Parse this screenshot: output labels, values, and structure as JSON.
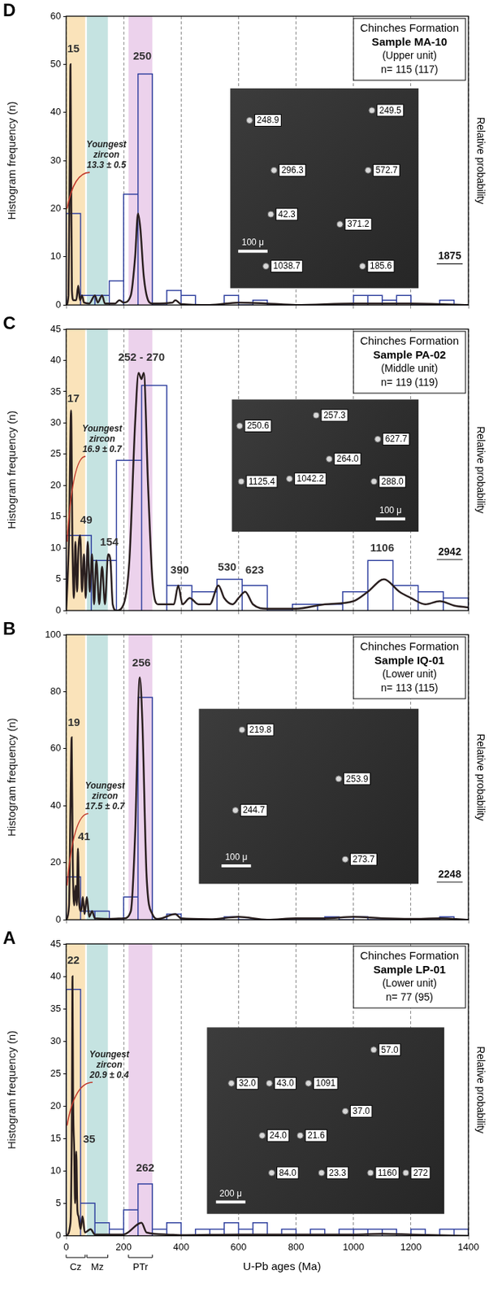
{
  "chart_data": [
    {
      "type": "histogram",
      "panel_label": "D",
      "title": "Chinches Formation",
      "subtitle": [
        "Sample MA-10",
        "(Upper unit)",
        "n= 115 (117)"
      ],
      "y_label": "Histogram frequency (n)",
      "y2_label": "Relative probability",
      "bins": [
        0,
        50,
        100,
        150,
        200,
        250,
        300,
        350,
        400,
        450,
        500,
        550,
        600,
        650,
        700,
        750,
        800,
        850,
        900,
        950,
        1000,
        1050,
        1100,
        1150,
        1200,
        1250,
        1300,
        1350,
        1400
      ],
      "values": [
        19,
        2,
        2,
        5,
        23,
        48,
        0,
        3,
        2,
        0,
        0,
        2,
        0,
        1,
        0,
        0,
        0,
        0,
        0,
        0,
        2,
        2,
        1,
        2,
        0,
        0,
        1,
        0
      ],
      "color": "#2e3f9e",
      "curve": {
        "x": [
          0,
          8,
          13,
          15,
          17,
          20,
          25,
          35,
          42,
          48,
          55,
          62,
          80,
          100,
          110,
          125,
          135,
          170,
          185,
          200,
          225,
          240,
          250,
          258,
          270,
          285,
          300,
          370,
          380,
          400,
          500,
          600,
          700,
          800,
          1000,
          1100,
          1200,
          1400
        ],
        "y": [
          0,
          2,
          35,
          50,
          30,
          3,
          1,
          1,
          4,
          1,
          2,
          0.5,
          0.3,
          2,
          0.5,
          2,
          0.3,
          0.3,
          1,
          0.5,
          2,
          10,
          19,
          16,
          6,
          1,
          0.3,
          0.5,
          1,
          0.2,
          0,
          0.5,
          0.3,
          0,
          0.3,
          0.3,
          0.3,
          0
        ],
        "color": "#2a1f1f"
      },
      "bands": [
        {
          "range": [
            0,
            66
          ],
          "color": "rgba(247,208,140,0.6)"
        },
        {
          "range": [
            72,
            145
          ],
          "color": "rgba(140,200,196,0.5)"
        },
        {
          "range": [
            217,
            300
          ],
          "color": "rgba(218,165,218,0.5)"
        }
      ],
      "peaks": [
        {
          "text": "15",
          "x": 25,
          "y": 52
        },
        {
          "text": "250",
          "x": 265,
          "y": 50.5
        }
      ],
      "youngest_zircon": {
        "text": [
          "Youngest",
          "zircon",
          "13.3 ± 0.5"
        ],
        "x": 140,
        "y": 28,
        "target": [
          3,
          20
        ],
        "color": "#c0392b"
      },
      "oldest_zircon": {
        "text": "1875",
        "x": 1335,
        "y": 9
      },
      "inset": {
        "labels": [
          "248.9",
          "249.5",
          "296.3",
          "572.7",
          "42.3",
          "371.2",
          "1038.7",
          "185.6"
        ],
        "scale_bar": "100 μ"
      },
      "xlim": [
        0,
        1400
      ],
      "xticks": [
        0,
        200,
        400,
        600,
        800,
        1000,
        1200,
        1400
      ],
      "ylim": [
        0,
        60
      ],
      "yticks": [
        0,
        10,
        20,
        30,
        40,
        50,
        60
      ],
      "grid": "x",
      "tick_labels": "y"
    },
    {
      "type": "histogram",
      "panel_label": "C",
      "title": "Chinches Formation",
      "subtitle": [
        "Sample PA-02",
        "(Middle unit)",
        "n= 119 (119)"
      ],
      "y_label": "Histogram frequency (n)",
      "y2_label": "Relative probability",
      "bins": [
        0,
        87.5,
        175,
        262.5,
        350,
        437.5,
        525,
        612.5,
        700,
        787.5,
        875,
        962.5,
        1050,
        1137.5,
        1225,
        1312.5,
        1400
      ],
      "values": [
        12,
        8,
        24,
        36,
        4,
        3,
        5,
        4,
        0,
        1,
        1,
        3,
        8,
        4,
        3,
        2
      ],
      "color": "#2e3f9e",
      "curve": {
        "x": [
          0,
          5,
          10,
          17,
          22,
          27,
          32,
          38,
          43,
          49,
          55,
          62,
          68,
          75,
          82,
          90,
          97,
          105,
          115,
          125,
          135,
          146,
          154,
          162,
          175,
          200,
          220,
          240,
          252,
          262,
          270,
          285,
          300,
          320,
          350,
          375,
          390,
          405,
          430,
          460,
          500,
          530,
          550,
          580,
          600,
          623,
          650,
          700,
          800,
          900,
          1000,
          1050,
          1106,
          1160,
          1200,
          1250,
          1300,
          1350,
          1400
        ],
        "y": [
          0,
          5,
          12,
          32,
          10,
          2,
          11,
          3,
          10,
          12,
          3,
          9,
          2,
          11,
          3,
          9,
          1,
          8,
          1,
          7,
          1,
          9,
          8,
          1,
          0,
          1,
          8,
          30,
          38,
          37,
          38,
          20,
          5,
          1,
          1,
          1,
          4,
          1,
          2,
          1,
          1,
          4,
          2,
          1,
          2,
          3,
          1,
          0.3,
          0.3,
          1,
          1.5,
          3,
          5,
          3,
          2,
          1,
          1.5,
          0.8,
          0.5
        ],
        "color": "#2a1f1f"
      },
      "bands": [
        {
          "range": [
            0,
            66
          ],
          "color": "rgba(247,208,140,0.6)"
        },
        {
          "range": [
            72,
            145
          ],
          "color": "rgba(140,200,196,0.5)"
        },
        {
          "range": [
            217,
            300
          ],
          "color": "rgba(218,165,218,0.5)"
        }
      ],
      "peaks": [
        {
          "text": "17",
          "x": 25,
          "y": 33
        },
        {
          "text": "252 - 270",
          "x": 262,
          "y": 39.5
        },
        {
          "text": "49",
          "x": 70,
          "y": 13.5
        },
        {
          "text": "154",
          "x": 150,
          "y": 10
        },
        {
          "text": "390",
          "x": 395,
          "y": 5.5
        },
        {
          "text": "530",
          "x": 560,
          "y": 6
        },
        {
          "text": "623",
          "x": 656,
          "y": 5.5
        },
        {
          "text": "1106",
          "x": 1100,
          "y": 9
        }
      ],
      "youngest_zircon": {
        "text": [
          "Youngest",
          "zircon",
          "16.9 ± 0.7"
        ],
        "x": 125,
        "y": 25,
        "target": [
          3,
          11
        ],
        "color": "#c0392b"
      },
      "oldest_zircon": {
        "text": "2942",
        "x": 1335,
        "y": 8.5
      },
      "inset": {
        "labels": [
          "250.6",
          "257.3",
          "627.7",
          "1125.4",
          "1042.2",
          "264.0",
          "288.0"
        ],
        "scale_bar": "100 μ"
      },
      "xlim": [
        0,
        1400
      ],
      "xticks": [
        0,
        200,
        400,
        600,
        800,
        1000,
        1200,
        1400
      ],
      "ylim": [
        0,
        45
      ],
      "yticks": [
        0,
        5,
        10,
        15,
        20,
        25,
        30,
        35,
        40,
        45
      ],
      "grid": "x",
      "tick_labels": "y"
    },
    {
      "type": "histogram",
      "panel_label": "B",
      "title": "Chinches Formation",
      "subtitle": [
        "Sample IQ-01",
        "(Lower unit)",
        "n= 113 (115)"
      ],
      "y_label": "Histogram frequency (n)",
      "y2_label": "Relative probability",
      "bins": [
        0,
        50,
        100,
        150,
        200,
        250,
        300,
        350,
        400,
        450,
        500,
        550,
        600,
        650,
        700,
        750,
        800,
        850,
        900,
        950,
        1000,
        1050,
        1100,
        1150,
        1200,
        1250,
        1300,
        1350,
        1400
      ],
      "values": [
        15,
        3,
        3,
        0,
        8,
        78,
        0,
        2,
        0,
        0,
        0,
        1,
        0,
        0,
        0,
        0,
        0,
        0,
        1,
        0,
        1,
        0,
        0,
        0,
        0,
        0,
        1,
        0
      ],
      "color": "#2e3f9e",
      "curve": {
        "x": [
          0,
          10,
          15,
          19,
          23,
          28,
          33,
          37,
          41,
          45,
          52,
          58,
          64,
          72,
          80,
          90,
          100,
          150,
          200,
          225,
          240,
          256,
          265,
          280,
          300,
          320,
          380,
          400,
          500,
          600,
          700,
          800,
          900,
          1000,
          1100,
          1200,
          1300,
          1400
        ],
        "y": [
          0,
          5,
          40,
          64,
          20,
          5,
          12,
          5,
          25,
          6,
          3,
          8,
          2,
          8,
          1,
          3,
          0.5,
          0.3,
          0.5,
          3,
          30,
          85,
          70,
          15,
          2,
          0.3,
          2,
          0.5,
          0.2,
          1,
          0,
          0.5,
          0.5,
          1,
          0.5,
          0.3,
          0.5,
          0
        ],
        "color": "#2a1f1f"
      },
      "bands": [
        {
          "range": [
            0,
            66
          ],
          "color": "rgba(247,208,140,0.6)"
        },
        {
          "range": [
            72,
            145
          ],
          "color": "rgba(140,200,196,0.5)"
        },
        {
          "range": [
            217,
            300
          ],
          "color": "rgba(218,165,218,0.5)"
        }
      ],
      "peaks": [
        {
          "text": "256",
          "x": 262,
          "y": 88
        },
        {
          "text": "19",
          "x": 27,
          "y": 67
        },
        {
          "text": "41",
          "x": 62,
          "y": 27
        }
      ],
      "youngest_zircon": {
        "text": [
          "Youngest",
          "zircon",
          "17.5 ± 0.7"
        ],
        "x": 135,
        "y": 38,
        "target": [
          3,
          12
        ],
        "color": "#c0392b"
      },
      "oldest_zircon": {
        "text": "2248",
        "x": 1335,
        "y": 14
      },
      "inset": {
        "labels": [
          "219.8",
          "253.9",
          "244.7",
          "273.7"
        ],
        "scale_bar": "100 μ"
      },
      "xlim": [
        0,
        1400
      ],
      "xticks": [
        0,
        200,
        400,
        600,
        800,
        1000,
        1200,
        1400
      ],
      "ylim": [
        0,
        100
      ],
      "yticks": [
        0,
        20,
        40,
        60,
        80,
        100
      ],
      "grid": "x",
      "tick_labels": "y"
    },
    {
      "type": "histogram",
      "panel_label": "A",
      "title": "Chinches Formation",
      "subtitle": [
        "Sample LP-01",
        "(Lower unit)",
        "n= 77 (95)"
      ],
      "x_label": "U-Pb ages (Ma)",
      "y_label": "Histogram frequency (n)",
      "y2_label": "Relative probability",
      "bins": [
        0,
        50,
        100,
        150,
        200,
        250,
        300,
        350,
        400,
        450,
        500,
        550,
        600,
        650,
        700,
        750,
        800,
        850,
        900,
        950,
        1000,
        1050,
        1100,
        1150,
        1200,
        1250,
        1300,
        1350,
        1400
      ],
      "values": [
        38,
        5,
        2,
        1,
        4,
        8,
        1,
        2,
        0,
        1,
        1,
        2,
        1,
        2,
        0,
        1,
        0,
        1,
        0,
        1,
        1,
        1,
        1,
        0,
        1,
        0,
        1,
        1
      ],
      "color": "#2e3f9e",
      "curve": {
        "x": [
          0,
          15,
          20,
          22,
          24,
          28,
          31,
          35,
          39,
          43,
          50,
          57,
          65,
          85,
          100,
          200,
          262,
          280,
          350,
          400,
          600,
          1000,
          1100,
          1200,
          1400
        ],
        "y": [
          0,
          2,
          20,
          40,
          22,
          13,
          5,
          13,
          4,
          3,
          1,
          3,
          0.5,
          1,
          0.2,
          0.2,
          2,
          0.5,
          0.2,
          0.1,
          0.2,
          0.2,
          0.3,
          0.2,
          0
        ],
        "color": "#2a1f1f"
      },
      "bands": [
        {
          "label": "Cz",
          "range": [
            0,
            66
          ],
          "color": "rgba(247,208,140,0.6)"
        },
        {
          "label": "Mz",
          "range": [
            72,
            145
          ],
          "color": "rgba(140,200,196,0.5)"
        },
        {
          "label": "PTr",
          "range": [
            217,
            300
          ],
          "color": "rgba(218,165,218,0.5)"
        }
      ],
      "peaks": [
        {
          "text": "22",
          "x": 25,
          "y": 41.5
        },
        {
          "text": "35",
          "x": 80,
          "y": 14
        },
        {
          "text": "262",
          "x": 275,
          "y": 9.5
        }
      ],
      "youngest_zircon": {
        "text": [
          "Youngest",
          "zircon",
          "20.9 ± 0.4"
        ],
        "x": 150,
        "y": 24,
        "target": [
          3,
          17
        ],
        "color": "#c0392b"
      },
      "inset": {
        "labels": [
          "57.0",
          "32.0",
          "43.0",
          "1091",
          "37.0",
          "24.0",
          "21.6",
          "84.0",
          "23.3",
          "1160",
          "272"
        ],
        "scale_bar": "200 μ"
      },
      "xlim": [
        0,
        1400
      ],
      "xticks": [
        0,
        200,
        400,
        600,
        800,
        1000,
        1200,
        1400
      ],
      "ylim": [
        0,
        45
      ],
      "yticks": [
        0,
        5,
        10,
        15,
        20,
        25,
        30,
        35,
        40,
        45
      ],
      "grid": "x",
      "tick_labels": true
    }
  ]
}
